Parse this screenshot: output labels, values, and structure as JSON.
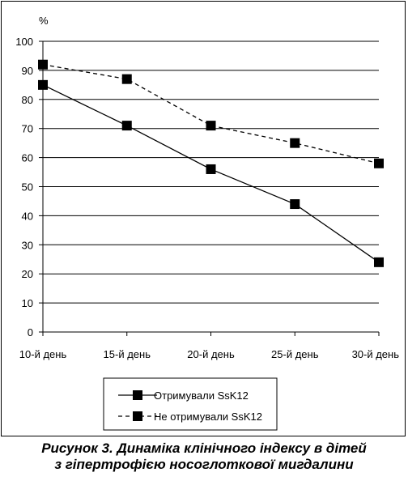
{
  "chart_data": {
    "type": "line",
    "unit_label": "%",
    "categories": [
      "10-й день",
      "15-й день",
      "20-й день",
      "25-й день",
      "30-й день"
    ],
    "ylim": [
      0,
      100
    ],
    "y_ticks": [
      "0",
      "10",
      "20",
      "30",
      "40",
      "50",
      "60",
      "70",
      "80",
      "90",
      "100"
    ],
    "grid": true,
    "legend_position": "bottom",
    "series": [
      {
        "name": "Отримували SsK12",
        "values": [
          85,
          71,
          56,
          44,
          24
        ],
        "line_style": "solid",
        "marker": "square",
        "color": "#000000"
      },
      {
        "name": "Не отримували SsK12",
        "values": [
          92,
          87,
          71,
          65,
          58
        ],
        "line_style": "dashed",
        "marker": "square",
        "color": "#000000"
      }
    ]
  },
  "caption": {
    "line1": "Рисунок 3. Динаміка клінічного індексу в дітей",
    "line2": "з гіпертрофією носоглоткової мигдалини"
  }
}
